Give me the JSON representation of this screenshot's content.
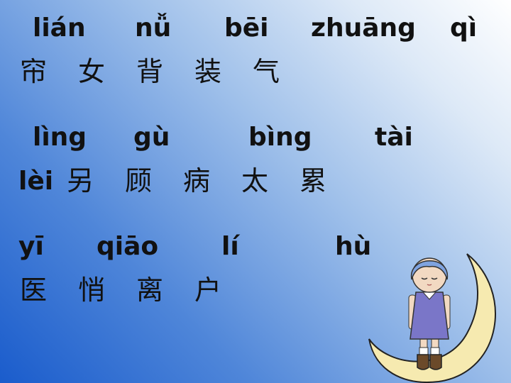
{
  "rows": [
    {
      "pinyin": [
        "lián",
        "nǚ",
        "bēi",
        "zhuāng",
        "qì"
      ],
      "hanzi": [
        "帘",
        "女",
        "背",
        "装",
        "气"
      ]
    },
    {
      "pinyin": [
        "lìng",
        "gù",
        "bìng",
        "tài"
      ],
      "prefix_pinyin": "lèi",
      "hanzi": [
        "另",
        "顾",
        "病",
        "太",
        "累"
      ]
    },
    {
      "pinyin": [
        "yī",
        "qiāo",
        "lí",
        "hù"
      ],
      "hanzi": [
        "医",
        "悄",
        "离",
        "户"
      ]
    }
  ],
  "illustration": {
    "icon": "girl-on-crescent-moon-icon",
    "moon_color": "#f6eab0",
    "dress_color": "#7a76c8"
  }
}
